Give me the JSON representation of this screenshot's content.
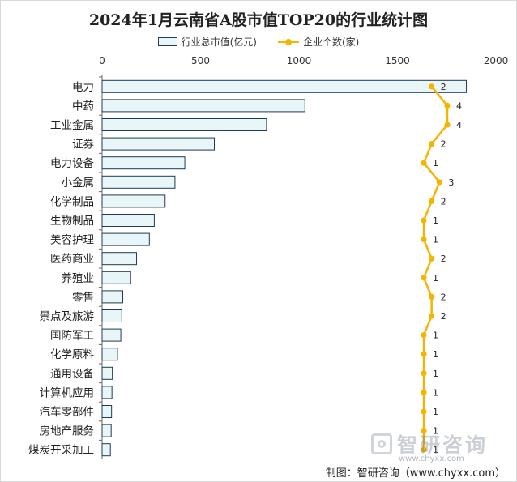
{
  "chart_data": {
    "type": "bar",
    "orientation": "horizontal",
    "title": "2024年1月云南省A股市值TOP20的行业统计图",
    "categories": [
      "电力",
      "中药",
      "工业金属",
      "证券",
      "电力设备",
      "小金属",
      "化学制品",
      "生物制品",
      "美容护理",
      "医药商业",
      "养殖业",
      "零售",
      "景点及旅游",
      "国防军工",
      "化学原料",
      "通用设备",
      "计算机应用",
      "汽车零部件",
      "房地产服务",
      "煤炭开采加工"
    ],
    "series": [
      {
        "name": "行业总市值(亿元)",
        "type": "bar",
        "color": "#e9f6f8",
        "border": "#1f3a56",
        "values": [
          1850,
          1030,
          835,
          570,
          420,
          370,
          320,
          265,
          240,
          175,
          145,
          105,
          100,
          95,
          78,
          52,
          50,
          48,
          46,
          42
        ]
      },
      {
        "name": "企业个数(家)",
        "type": "line",
        "color": "#f4b400",
        "values": [
          2,
          4,
          4,
          2,
          1,
          3,
          2,
          1,
          1,
          2,
          1,
          2,
          2,
          1,
          1,
          1,
          1,
          1,
          1,
          1
        ]
      }
    ],
    "xlim": [
      0,
      2000
    ],
    "xticks": [
      "0",
      "500",
      "1000",
      "1500",
      "2000"
    ],
    "secondary_range": [
      1,
      4
    ],
    "legend_position": "top-center",
    "grid": false
  },
  "watermark": {
    "brand": "智研咨询",
    "url": "www.chyxx.com"
  },
  "footer": "制图：智研咨询（www.chyxx.com）"
}
